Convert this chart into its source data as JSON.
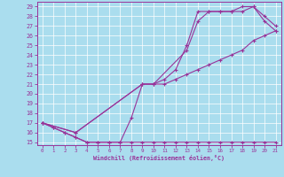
{
  "xlabel": "Windchill (Refroidissement éolien,°C)",
  "bg_color": "#aaddee",
  "grid_color": "#ffffff",
  "line_color": "#993399",
  "xlim": [
    -0.5,
    21.5
  ],
  "ylim": [
    14.7,
    29.5
  ],
  "xticks": [
    0,
    1,
    2,
    3,
    4,
    5,
    6,
    7,
    8,
    9,
    10,
    11,
    12,
    13,
    14,
    15,
    16,
    17,
    18,
    19,
    20,
    21
  ],
  "yticks": [
    15,
    16,
    17,
    18,
    19,
    20,
    21,
    22,
    23,
    24,
    25,
    26,
    27,
    28,
    29
  ],
  "line1_x": [
    0,
    1,
    2,
    3,
    4,
    5,
    6,
    7,
    8,
    9,
    10,
    11,
    12,
    13,
    14,
    15,
    16,
    17,
    18,
    19,
    20,
    21
  ],
  "line1_y": [
    17,
    16.5,
    16,
    15.5,
    15,
    15,
    15,
    15,
    15,
    15,
    15,
    15,
    15,
    15,
    15,
    15,
    15,
    15,
    15,
    15,
    15,
    15
  ],
  "line2_x": [
    0,
    1,
    2,
    3,
    4,
    5,
    6,
    7,
    8,
    9,
    10,
    11,
    12,
    13,
    14,
    15,
    16,
    17,
    18,
    19,
    20,
    21
  ],
  "line2_y": [
    17,
    16.5,
    16,
    15.5,
    15,
    15,
    15,
    15,
    17.5,
    21,
    21,
    21.5,
    22.5,
    25,
    28.5,
    28.5,
    28.5,
    28.5,
    29,
    29,
    28,
    27
  ],
  "line3_x": [
    0,
    3,
    9,
    10,
    13,
    14,
    15,
    16,
    17,
    18,
    19,
    20,
    21
  ],
  "line3_y": [
    17,
    16,
    21,
    21,
    24.5,
    27.5,
    28.5,
    28.5,
    28.5,
    28.5,
    29,
    27.5,
    26.5
  ],
  "line4_x": [
    0,
    3,
    9,
    10,
    11,
    12,
    13,
    14,
    15,
    16,
    17,
    18,
    19,
    20,
    21
  ],
  "line4_y": [
    17,
    16,
    21,
    21,
    21,
    21.5,
    22,
    22.5,
    23,
    23.5,
    24,
    24.5,
    25.5,
    26,
    26.5
  ]
}
